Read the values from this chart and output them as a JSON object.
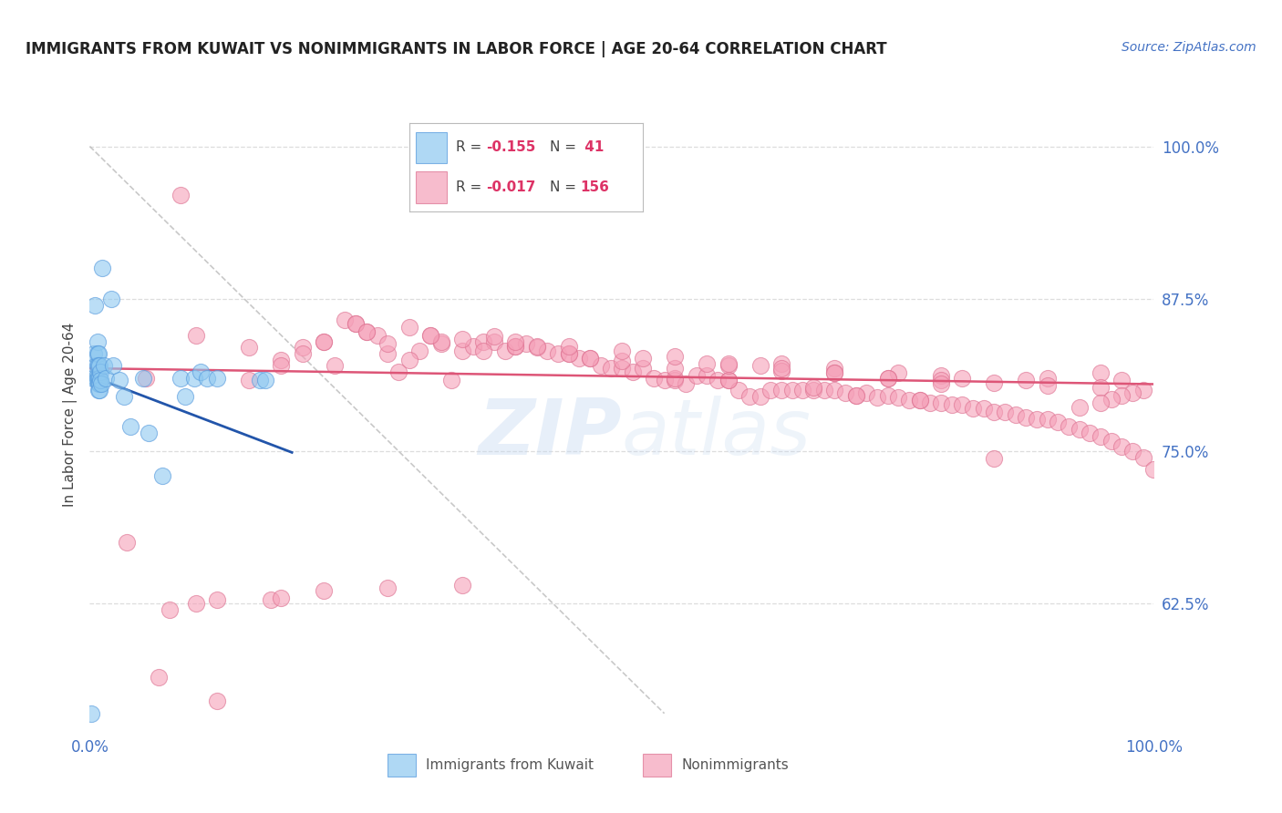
{
  "title": "IMMIGRANTS FROM KUWAIT VS NONIMMIGRANTS IN LABOR FORCE | AGE 20-64 CORRELATION CHART",
  "source": "Source: ZipAtlas.com",
  "ylabel": "In Labor Force | Age 20-64",
  "ytick_labels": [
    "100.0%",
    "87.5%",
    "75.0%",
    "62.5%"
  ],
  "ytick_values": [
    1.0,
    0.875,
    0.75,
    0.625
  ],
  "ylim": [
    0.52,
    1.04
  ],
  "xlim": [
    0.0,
    1.0
  ],
  "blue_scatter_x": [
    0.003,
    0.004,
    0.005,
    0.006,
    0.006,
    0.007,
    0.007,
    0.007,
    0.007,
    0.008,
    0.008,
    0.008,
    0.008,
    0.008,
    0.009,
    0.009,
    0.009,
    0.009,
    0.01,
    0.01,
    0.011,
    0.012,
    0.013,
    0.015,
    0.02,
    0.022,
    0.028,
    0.032,
    0.038,
    0.05,
    0.055,
    0.068,
    0.085,
    0.09,
    0.098,
    0.104,
    0.11,
    0.12,
    0.16,
    0.165,
    0.001
  ],
  "blue_scatter_y": [
    0.81,
    0.83,
    0.87,
    0.82,
    0.81,
    0.84,
    0.83,
    0.82,
    0.81,
    0.83,
    0.82,
    0.81,
    0.805,
    0.8,
    0.82,
    0.81,
    0.805,
    0.8,
    0.815,
    0.808,
    0.805,
    0.9,
    0.82,
    0.81,
    0.875,
    0.82,
    0.808,
    0.795,
    0.77,
    0.81,
    0.765,
    0.73,
    0.81,
    0.795,
    0.81,
    0.815,
    0.81,
    0.81,
    0.808,
    0.808,
    0.535
  ],
  "pink_scatter_x": [
    0.035,
    0.053,
    0.065,
    0.075,
    0.085,
    0.1,
    0.12,
    0.15,
    0.17,
    0.18,
    0.2,
    0.22,
    0.23,
    0.24,
    0.25,
    0.26,
    0.27,
    0.28,
    0.29,
    0.3,
    0.31,
    0.32,
    0.33,
    0.34,
    0.35,
    0.36,
    0.37,
    0.38,
    0.39,
    0.4,
    0.41,
    0.42,
    0.43,
    0.44,
    0.45,
    0.46,
    0.47,
    0.48,
    0.49,
    0.5,
    0.51,
    0.52,
    0.53,
    0.54,
    0.55,
    0.56,
    0.57,
    0.58,
    0.59,
    0.6,
    0.61,
    0.62,
    0.63,
    0.64,
    0.65,
    0.66,
    0.67,
    0.68,
    0.69,
    0.7,
    0.71,
    0.72,
    0.73,
    0.74,
    0.75,
    0.76,
    0.77,
    0.78,
    0.79,
    0.8,
    0.81,
    0.82,
    0.83,
    0.84,
    0.85,
    0.86,
    0.87,
    0.88,
    0.89,
    0.9,
    0.91,
    0.92,
    0.93,
    0.94,
    0.95,
    0.96,
    0.97,
    0.98,
    0.99,
    1.0,
    0.18,
    0.25,
    0.3,
    0.37,
    0.85,
    0.97,
    0.22,
    0.28,
    0.33,
    0.4,
    0.15,
    0.2,
    0.6,
    0.68,
    0.55,
    0.47,
    0.42,
    0.38,
    0.32,
    0.26,
    0.72,
    0.78,
    0.63,
    0.7,
    0.76,
    0.82,
    0.88,
    0.45,
    0.52,
    0.58,
    0.65,
    0.8,
    0.9,
    0.95,
    0.5,
    0.55,
    0.6,
    0.65,
    0.7,
    0.75,
    0.8,
    0.85,
    0.9,
    0.95,
    0.35,
    0.4,
    0.45,
    0.5,
    0.55,
    0.6,
    0.65,
    0.7,
    0.75,
    0.8,
    0.35,
    0.28,
    0.22,
    0.18,
    0.12,
    0.1,
    0.99,
    0.98,
    0.97,
    0.96,
    0.95,
    0.93
  ],
  "pink_scatter_y": [
    0.675,
    0.81,
    0.565,
    0.62,
    0.96,
    0.845,
    0.545,
    0.808,
    0.628,
    0.825,
    0.835,
    0.84,
    0.82,
    0.858,
    0.855,
    0.848,
    0.845,
    0.83,
    0.815,
    0.852,
    0.832,
    0.845,
    0.838,
    0.808,
    0.832,
    0.836,
    0.84,
    0.84,
    0.832,
    0.836,
    0.838,
    0.835,
    0.832,
    0.83,
    0.83,
    0.826,
    0.826,
    0.82,
    0.818,
    0.818,
    0.815,
    0.818,
    0.81,
    0.808,
    0.808,
    0.805,
    0.812,
    0.812,
    0.808,
    0.808,
    0.8,
    0.795,
    0.795,
    0.8,
    0.8,
    0.8,
    0.8,
    0.8,
    0.8,
    0.8,
    0.798,
    0.796,
    0.798,
    0.794,
    0.796,
    0.794,
    0.792,
    0.792,
    0.79,
    0.79,
    0.788,
    0.788,
    0.785,
    0.785,
    0.782,
    0.782,
    0.78,
    0.778,
    0.776,
    0.776,
    0.774,
    0.77,
    0.768,
    0.765,
    0.762,
    0.758,
    0.754,
    0.75,
    0.745,
    0.735,
    0.82,
    0.855,
    0.825,
    0.832,
    0.744,
    0.808,
    0.84,
    0.838,
    0.84,
    0.836,
    0.835,
    0.83,
    0.808,
    0.802,
    0.81,
    0.826,
    0.836,
    0.844,
    0.845,
    0.848,
    0.796,
    0.792,
    0.82,
    0.818,
    0.814,
    0.81,
    0.808,
    0.83,
    0.826,
    0.822,
    0.822,
    0.812,
    0.81,
    0.814,
    0.824,
    0.818,
    0.82,
    0.816,
    0.814,
    0.81,
    0.808,
    0.806,
    0.804,
    0.802,
    0.842,
    0.84,
    0.836,
    0.832,
    0.828,
    0.822,
    0.818,
    0.814,
    0.81,
    0.805,
    0.64,
    0.638,
    0.636,
    0.63,
    0.628,
    0.625,
    0.8,
    0.798,
    0.796,
    0.793,
    0.79,
    0.786
  ],
  "blue_line_x": [
    0.0,
    0.19
  ],
  "blue_line_y": [
    0.812,
    0.749
  ],
  "pink_line_x": [
    0.0,
    1.0
  ],
  "pink_line_y": [
    0.818,
    0.805
  ],
  "dashed_line_x": [
    0.0,
    0.54
  ],
  "dashed_line_y": [
    1.0,
    0.535
  ],
  "title_color": "#222222",
  "title_fontsize": 12,
  "source_color": "#4472C4",
  "ytick_color": "#4472C4",
  "xtick_color": "#4472C4",
  "scatter_blue_color": "#8EC8F0",
  "scatter_blue_edge": "#5599DD",
  "scatter_pink_color": "#F5A0B8",
  "scatter_pink_edge": "#DD7090",
  "blue_line_color": "#2255AA",
  "pink_line_color": "#DD5577",
  "dashed_line_color": "#BBBBBB",
  "watermark_color": "#C5D8F0",
  "watermark_alpha": 0.4,
  "grid_color": "#DDDDDD",
  "legend_r_color": "#DD3366",
  "legend_n_color": "#333333"
}
